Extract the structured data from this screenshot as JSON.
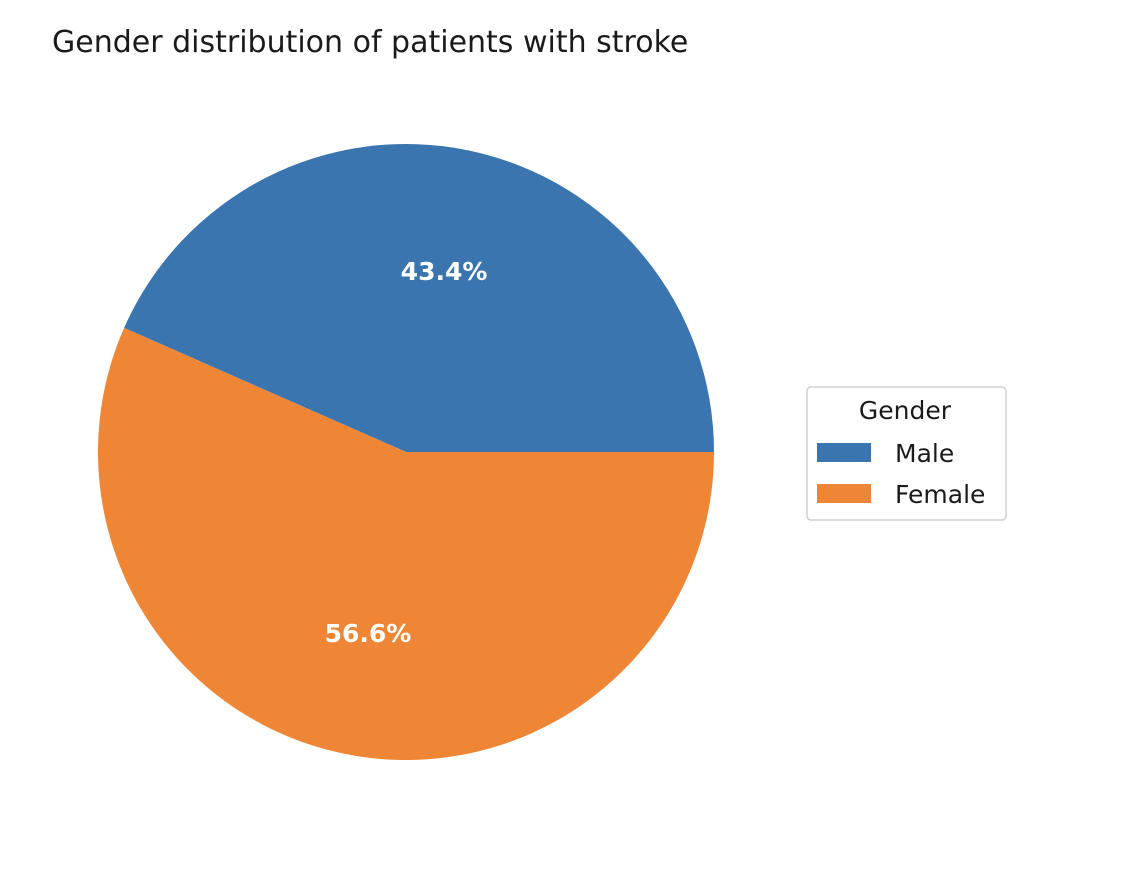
{
  "chart_data": {
    "type": "pie",
    "title": "Gender distribution of patients with stroke",
    "categories": [
      "Male",
      "Female"
    ],
    "values": [
      43.4,
      56.6
    ],
    "value_labels": [
      "43.4%",
      "56.6%"
    ],
    "colors": [
      "#3b75af",
      "#ef8636"
    ],
    "start_angle_degrees": 0,
    "direction": "counterclockwise",
    "legend": {
      "title": "Gender",
      "entries": [
        "Male",
        "Female"
      ],
      "placement": "center-right"
    }
  }
}
